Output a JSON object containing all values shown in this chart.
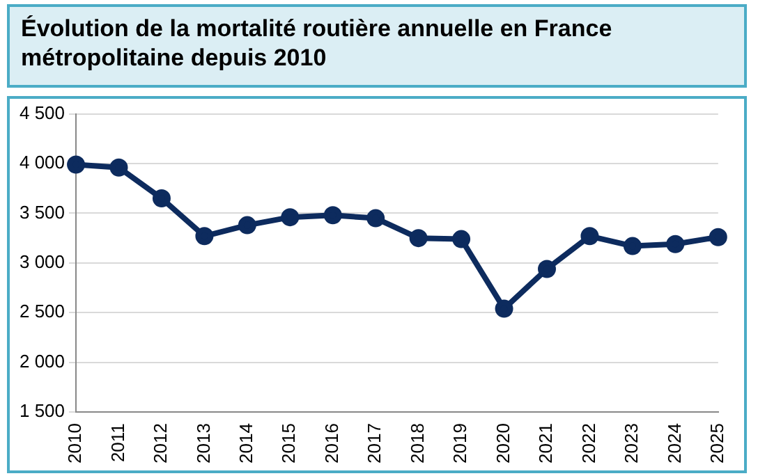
{
  "chart_data": {
    "type": "line",
    "title": "Évolution de la mortalité routière annuelle en France métropolitaine depuis 2010",
    "categories": [
      "2010",
      "2011",
      "2012",
      "2013",
      "2014",
      "2015",
      "2016",
      "2017",
      "2018",
      "2019",
      "2020",
      "2021",
      "2022",
      "2023",
      "2024",
      "2025"
    ],
    "series": [
      {
        "color": "#0d2b5e",
        "values": [
          3990,
          3960,
          3650,
          3270,
          3380,
          3460,
          3480,
          3450,
          3250,
          3240,
          2540,
          2940,
          3270,
          3170,
          3190,
          3260
        ]
      }
    ],
    "ylim": [
      1500,
      4500
    ],
    "yticks": [
      {
        "value": 1500,
        "label": "1 500"
      },
      {
        "value": 2000,
        "label": "2 000"
      },
      {
        "value": 2500,
        "label": "2 500"
      },
      {
        "value": 3000,
        "label": "3 000"
      },
      {
        "value": 3500,
        "label": "3 500"
      },
      {
        "value": 4000,
        "label": "4 000"
      },
      {
        "value": 4500,
        "label": "4 500"
      }
    ],
    "grid": "y",
    "legend": false,
    "marker": "circle",
    "line_style": "solid"
  }
}
